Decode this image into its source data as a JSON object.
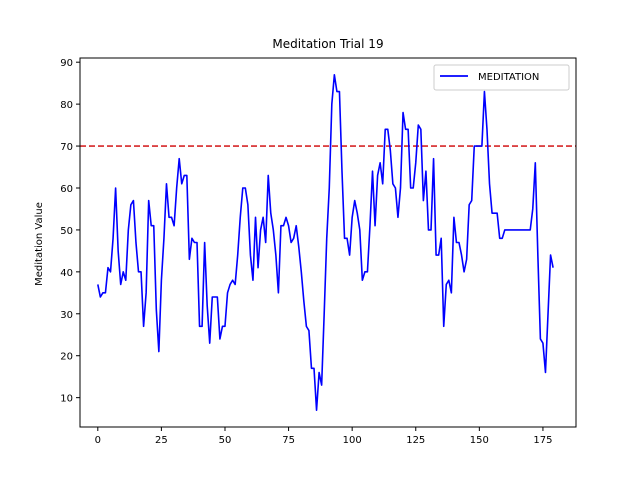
{
  "chart_data": {
    "type": "line",
    "title": "Meditation Trial 19",
    "xlabel": "",
    "ylabel": "Meditation Value",
    "xlim": [
      -7,
      188
    ],
    "ylim": [
      3,
      91
    ],
    "xticks": [
      0,
      25,
      50,
      75,
      100,
      125,
      150,
      175
    ],
    "yticks": [
      10,
      20,
      30,
      40,
      50,
      60,
      70,
      80,
      90
    ],
    "grid": false,
    "legend": {
      "position": "upper right"
    },
    "threshold": {
      "value": 70,
      "color": "#d62728",
      "style": "dashed"
    },
    "series": [
      {
        "name": "MEDITATION",
        "color": "#0000ff",
        "x": [
          0,
          1,
          2,
          3,
          4,
          5,
          6,
          7,
          8,
          9,
          10,
          11,
          12,
          13,
          14,
          15,
          16,
          17,
          18,
          19,
          20,
          21,
          22,
          23,
          24,
          25,
          26,
          27,
          28,
          29,
          30,
          31,
          32,
          33,
          34,
          35,
          36,
          37,
          38,
          39,
          40,
          41,
          42,
          43,
          44,
          45,
          46,
          47,
          48,
          49,
          50,
          51,
          52,
          53,
          54,
          55,
          56,
          57,
          58,
          59,
          60,
          61,
          62,
          63,
          64,
          65,
          66,
          67,
          68,
          69,
          70,
          71,
          72,
          73,
          74,
          75,
          76,
          77,
          78,
          79,
          80,
          81,
          82,
          83,
          84,
          85,
          86,
          87,
          88,
          89,
          90,
          91,
          92,
          93,
          94,
          95,
          96,
          97,
          98,
          99,
          100,
          101,
          102,
          103,
          104,
          105,
          106,
          107,
          108,
          109,
          110,
          111,
          112,
          113,
          114,
          115,
          116,
          117,
          118,
          119,
          120,
          121,
          122,
          123,
          124,
          125,
          126,
          127,
          128,
          129,
          130,
          131,
          132,
          133,
          134,
          135,
          136,
          137,
          138,
          139,
          140,
          141,
          142,
          143,
          144,
          145,
          146,
          147,
          148,
          149,
          150,
          151,
          152,
          153,
          154,
          155,
          156,
          157,
          158,
          159,
          160,
          161,
          162,
          163,
          164,
          165,
          166,
          167,
          168,
          169,
          170,
          171,
          172,
          173,
          174,
          175,
          176,
          177,
          178,
          179
        ],
        "values": [
          37,
          34,
          35,
          35,
          41,
          40,
          48,
          60,
          45,
          37,
          40,
          38,
          50,
          56,
          57,
          47,
          40,
          40,
          27,
          35,
          57,
          51,
          51,
          31,
          21,
          38,
          48,
          61,
          53,
          53,
          51,
          60,
          67,
          61,
          63,
          63,
          43,
          48,
          47,
          47,
          27,
          27,
          47,
          32,
          23,
          34,
          34,
          34,
          24,
          27,
          27,
          35,
          37,
          38,
          37,
          44,
          53,
          60,
          60,
          56,
          44,
          38,
          53,
          41,
          50,
          53,
          47,
          63,
          54,
          50,
          44,
          35,
          51,
          51,
          53,
          51,
          47,
          48,
          51,
          46,
          40,
          33,
          27,
          26,
          17,
          17,
          7,
          16,
          13,
          30,
          48,
          60,
          80,
          87,
          83,
          83,
          64,
          48,
          48,
          44,
          53,
          57,
          54,
          50,
          38,
          40,
          40,
          51,
          64,
          51,
          63,
          66,
          61,
          74,
          74,
          69,
          61,
          60,
          53,
          60,
          78,
          74,
          74,
          60,
          60,
          66,
          75,
          74,
          57,
          64,
          50,
          50,
          67,
          44,
          44,
          48,
          27,
          37,
          38,
          35,
          53,
          47,
          47,
          44,
          40,
          43,
          56,
          57,
          70,
          70,
          70,
          70,
          83,
          74,
          61,
          54,
          54,
          54,
          48,
          48,
          50,
          50,
          50,
          50,
          50,
          50,
          50,
          50,
          50,
          50,
          50,
          55,
          66,
          44,
          24,
          23,
          16,
          30,
          44,
          41
        ]
      }
    ]
  }
}
